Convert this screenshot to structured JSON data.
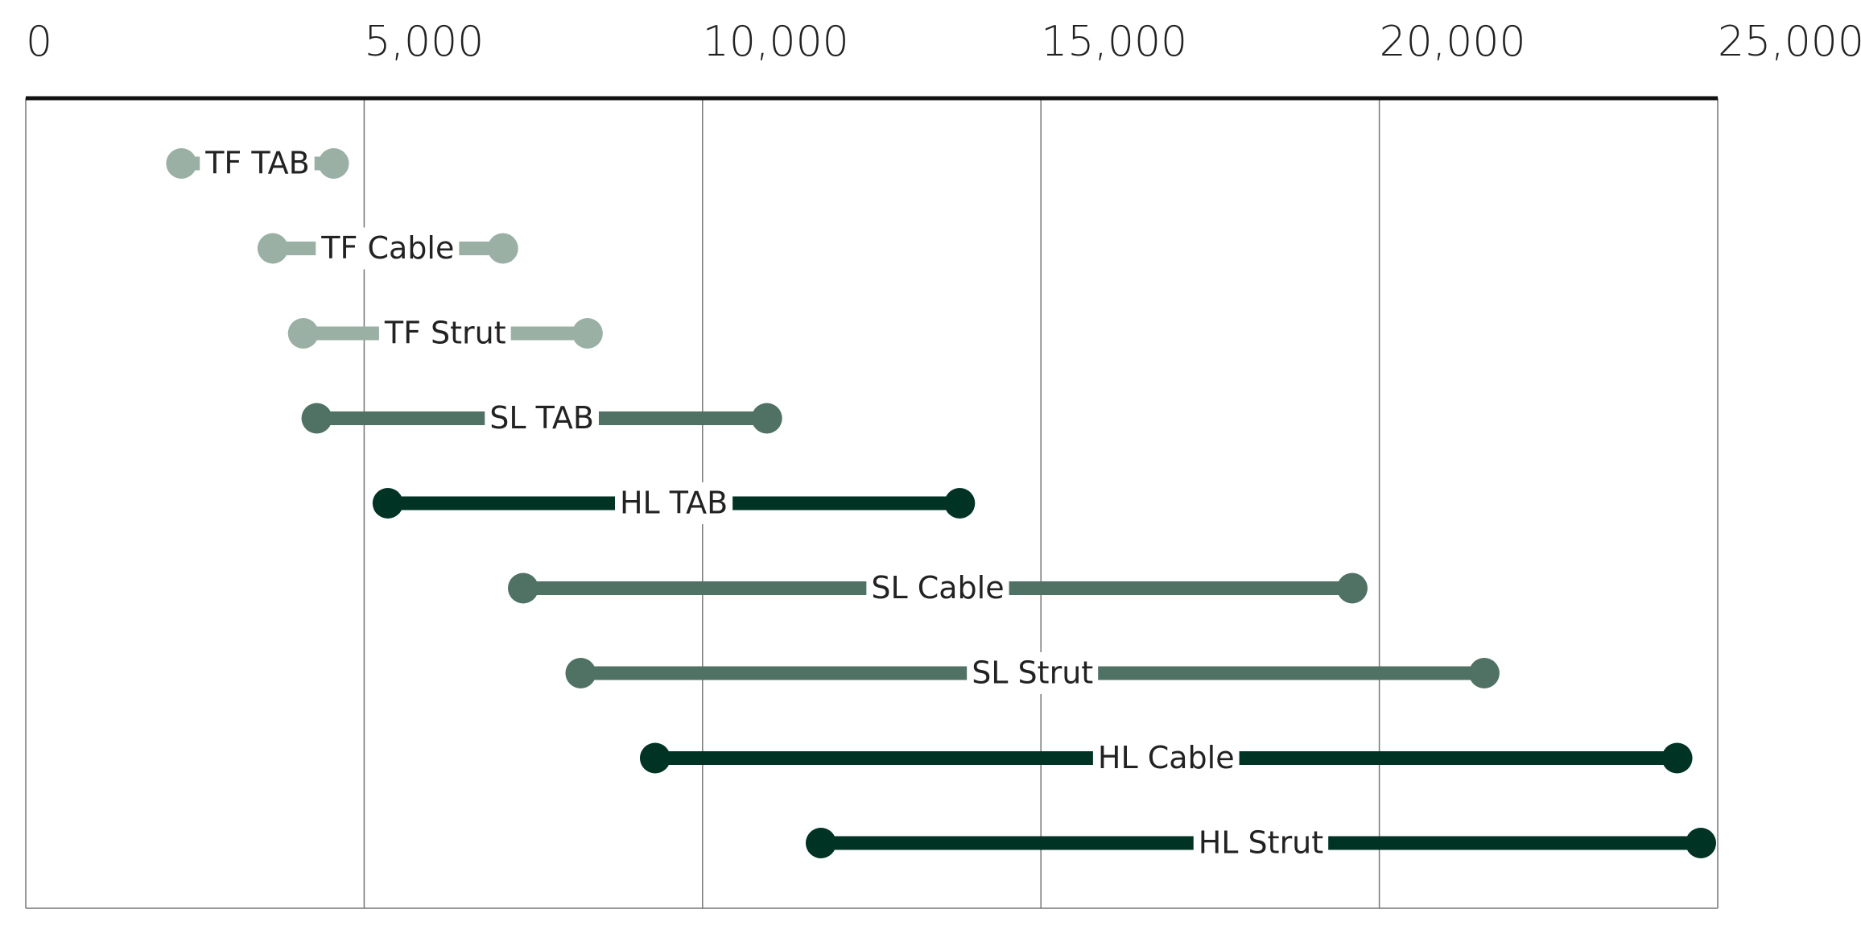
{
  "chart_data": {
    "type": "dumbbell",
    "categories": [
      "TF TAB",
      "TF Cable",
      "TF Strut",
      "SL TAB",
      "HL TAB",
      "SL Cable",
      "SL Strut",
      "HL Cable",
      "HL Strut"
    ],
    "low": [
      2300,
      3650,
      4100,
      4300,
      5350,
      7350,
      8200,
      9300,
      11750
    ],
    "high": [
      4550,
      7050,
      8300,
      10950,
      13800,
      19600,
      21550,
      24400,
      24750
    ],
    "colors": [
      "#9bb0a5",
      "#9bb0a5",
      "#9bb0a5",
      "#4f7264",
      "#003324",
      "#4f7264",
      "#4f7264",
      "#003324",
      "#003324"
    ],
    "xlim": [
      0,
      25000
    ],
    "xticks": [
      0,
      {
        "value": 5000,
        "label": "5,000"
      },
      {
        "value": 10000,
        "label": "10,000"
      },
      {
        "value": 15000,
        "label": "15,000"
      },
      {
        "value": 20000,
        "label": "20,000"
      },
      {
        "value": 25000,
        "label": "25,000"
      }
    ],
    "grid": true
  }
}
